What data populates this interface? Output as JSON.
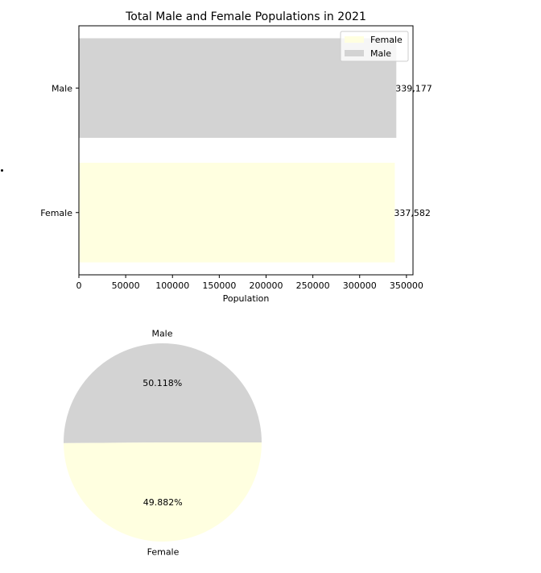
{
  "chart_data": [
    {
      "type": "bar",
      "orientation": "horizontal",
      "title": "Total Male and Female Populations in 2021",
      "xlabel": "Population",
      "ylabel": "",
      "categories": [
        "Female",
        "Male"
      ],
      "values": [
        337582,
        339177
      ],
      "value_labels": [
        "337,582",
        "339,177"
      ],
      "colors": [
        "#ffffe0",
        "#d3d3d3"
      ],
      "xlim": [
        0,
        357000
      ],
      "xticks": [
        0,
        50000,
        100000,
        150000,
        200000,
        250000,
        300000,
        350000
      ],
      "xtick_labels": [
        "0",
        "50000",
        "100000",
        "150000",
        "200000",
        "250000",
        "300000",
        "350000"
      ],
      "legend": {
        "placement": "top-right",
        "entries": [
          {
            "label": "Female",
            "color": "#ffffe0"
          },
          {
            "label": "Male",
            "color": "#d3d3d3"
          }
        ]
      },
      "grid": false
    },
    {
      "type": "pie",
      "title": "",
      "labels": [
        "Male",
        "Female"
      ],
      "values": [
        50.118,
        49.882
      ],
      "pct_labels": [
        "50.118%",
        "49.882%"
      ],
      "colors": [
        "#d3d3d3",
        "#ffffe0"
      ]
    }
  ]
}
